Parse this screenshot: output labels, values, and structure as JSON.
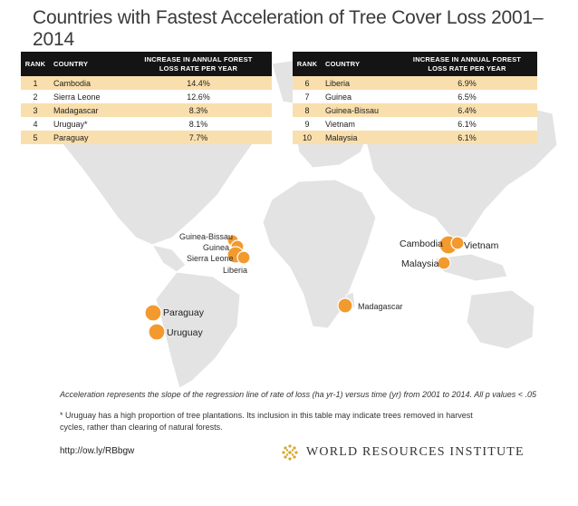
{
  "title": "Countries with Fastest Acceleration of Tree Cover Loss 2001–2014",
  "table_headers": {
    "rank": "RANK",
    "country": "COUNTRY",
    "value_line1": "INCREASE IN ANNUAL FOREST",
    "value_line2": "LOSS RATE PER YEAR"
  },
  "left_table": [
    {
      "rank": "1",
      "country": "Cambodia",
      "value": "14.4%"
    },
    {
      "rank": "2",
      "country": "Sierra Leone",
      "value": "12.6%"
    },
    {
      "rank": "3",
      "country": "Madagascar",
      "value": "8.3%"
    },
    {
      "rank": "4",
      "country": "Uruguay*",
      "value": "8.1%"
    },
    {
      "rank": "5",
      "country": "Paraguay",
      "value": "7.7%"
    }
  ],
  "right_table": [
    {
      "rank": "6",
      "country": "Liberia",
      "value": "6.9%"
    },
    {
      "rank": "7",
      "country": "Guinea",
      "value": "6.5%"
    },
    {
      "rank": "8",
      "country": "Guinea-Bissau",
      "value": "6.4%"
    },
    {
      "rank": "9",
      "country": "Vietnam",
      "value": "6.1%"
    },
    {
      "rank": "10",
      "country": "Malaysia",
      "value": "6.1%"
    }
  ],
  "map_labels": {
    "guinea_bissau": "Guinea-Bissau",
    "guinea": "Guinea",
    "sierra_leone": "Sierra Leone",
    "liberia": "Liberia",
    "cambodia": "Cambodia",
    "vietnam": "Vietnam",
    "malaysia": "Malaysia",
    "madagascar": "Madagascar",
    "paraguay": "Paraguay",
    "uruguay": "Uruguay"
  },
  "colors": {
    "marker": "#f29a2e",
    "land": "#e3e3e3",
    "header_bg": "#141414",
    "row_highlight": "#f9dfad"
  },
  "note": "Acceleration represents the slope of the regression line of rate of loss (ha yr-1) versus time (yr) from 2001 to 2014. All p values < .05",
  "footnote": "* Uruguay has a high proportion of tree plantations. Its inclusion in this table may indicate trees removed in harvest cycles, rather than clearing of natural forests.",
  "url": "http://ow.ly/RBbgw",
  "org": "WORLD RESOURCES INSTITUTE"
}
